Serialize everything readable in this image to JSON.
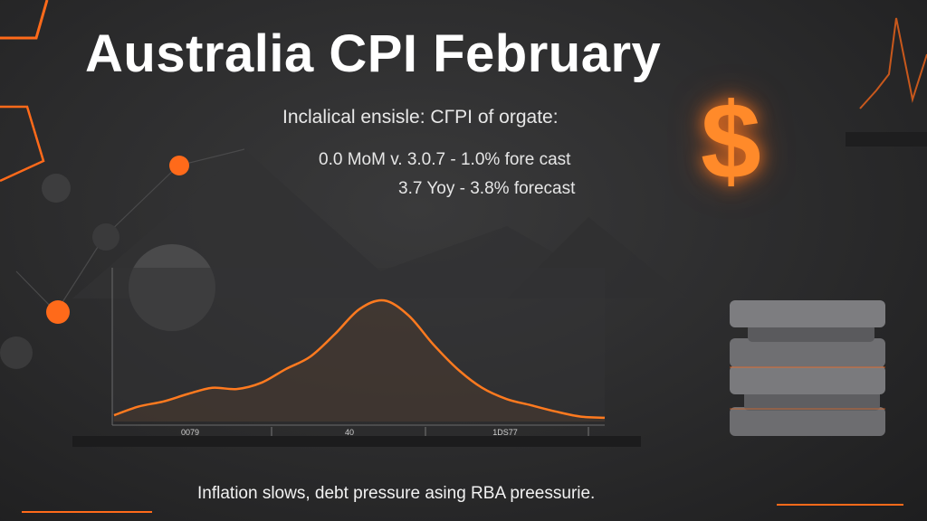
{
  "header": {
    "title": "Australia CPI February",
    "subtitle": "Inclalical ensisle: CΓPI of orgate:"
  },
  "stats": {
    "mom_line": "0.0 MoM v. 3.0.7  - 1.0% fore cast",
    "yoy_line": "3.7 Yoy - 3.8% forecast"
  },
  "footer": {
    "caption": "Inflation slows, debt pressure asing RBA preessurie."
  },
  "decor": {
    "dollar_symbol": "$",
    "dollar_icon": "dollar-sign-icon",
    "coin_stack_icon": "coin-stack-icon"
  },
  "colors": {
    "background": "#2b2b2c",
    "accent_orange": "#ff7a1f",
    "text": "#ffffff"
  },
  "chart_data": {
    "type": "area",
    "title": "",
    "xlabel": "",
    "ylabel": "",
    "x_tick_labels": [
      "0079",
      "40",
      "1DS77"
    ],
    "x": [
      0,
      1,
      2,
      3,
      4,
      5,
      6,
      7,
      8,
      9,
      10,
      11,
      12,
      13,
      14,
      15,
      16,
      17,
      18,
      19,
      20
    ],
    "values": [
      0.05,
      0.12,
      0.16,
      0.22,
      0.27,
      0.26,
      0.31,
      0.42,
      0.52,
      0.7,
      0.9,
      0.97,
      0.85,
      0.62,
      0.42,
      0.27,
      0.18,
      0.13,
      0.08,
      0.04,
      0.03
    ],
    "ylim": [
      0,
      1
    ],
    "grid": false,
    "legend": "none",
    "line_color": "#ff7a1f"
  }
}
